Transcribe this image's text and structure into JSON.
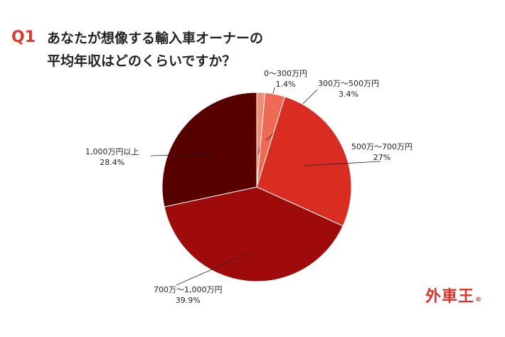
{
  "header": {
    "q_label": "Q1",
    "title_line1": "あなたが想像する輸入車オーナーの",
    "title_line2": "平均年収はどのくらいですか？"
  },
  "colors": {
    "accent": "#d93a2b",
    "slices": [
      "#f28b74",
      "#ef6a55",
      "#d92d22",
      "#9f0a0b",
      "#560000"
    ]
  },
  "chart_data": {
    "type": "pie",
    "title": "あなたが想像する輸入車オーナーの平均年収はどのくらいですか？",
    "start_angle_deg": 0,
    "direction": "clockwise",
    "slices": [
      {
        "label": "0〜300万円",
        "value": 1.4,
        "value_label": "1.4%"
      },
      {
        "label": "300万〜500万円",
        "value": 3.4,
        "value_label": "3.4%"
      },
      {
        "label": "500万〜700万円",
        "value": 27,
        "value_label": "27%"
      },
      {
        "label": "700万〜1,000万円",
        "value": 39.9,
        "value_label": "39.9%"
      },
      {
        "label": "1,000万円以上",
        "value": 28.4,
        "value_label": "28.4%"
      }
    ]
  },
  "brand": {
    "logo_text": "外車王",
    "logo_mark": "®"
  }
}
